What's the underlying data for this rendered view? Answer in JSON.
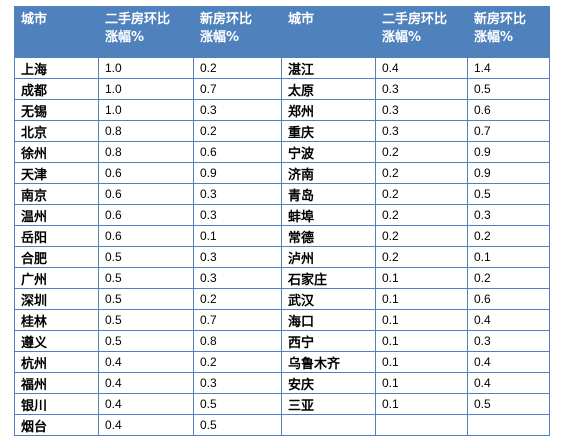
{
  "header": {
    "city": "城市",
    "secondhand_l1": "二手房环比",
    "secondhand_l2": "涨幅%",
    "new_l1": "新房环比",
    "new_l2": "涨幅%"
  },
  "rows": [
    {
      "left": {
        "city": "上海",
        "secondhand": "1.0",
        "new": "0.2"
      },
      "right": {
        "city": "湛江",
        "secondhand": "0.4",
        "new": "1.4"
      }
    },
    {
      "left": {
        "city": "成都",
        "secondhand": "1.0",
        "new": "0.7"
      },
      "right": {
        "city": "太原",
        "secondhand": "0.3",
        "new": "0.5"
      }
    },
    {
      "left": {
        "city": "无锡",
        "secondhand": "1.0",
        "new": "0.3"
      },
      "right": {
        "city": "郑州",
        "secondhand": "0.3",
        "new": "0.6"
      }
    },
    {
      "left": {
        "city": "北京",
        "secondhand": "0.8",
        "new": "0.2"
      },
      "right": {
        "city": "重庆",
        "secondhand": "0.3",
        "new": "0.7"
      }
    },
    {
      "left": {
        "city": "徐州",
        "secondhand": "0.8",
        "new": "0.6"
      },
      "right": {
        "city": "宁波",
        "secondhand": "0.2",
        "new": "0.9"
      }
    },
    {
      "left": {
        "city": "天津",
        "secondhand": "0.6",
        "new": "0.9"
      },
      "right": {
        "city": "济南",
        "secondhand": "0.2",
        "new": "0.9"
      }
    },
    {
      "left": {
        "city": "南京",
        "secondhand": "0.6",
        "new": "0.3"
      },
      "right": {
        "city": "青岛",
        "secondhand": "0.2",
        "new": "0.5"
      }
    },
    {
      "left": {
        "city": "温州",
        "secondhand": "0.6",
        "new": "0.3"
      },
      "right": {
        "city": "蚌埠",
        "secondhand": "0.2",
        "new": "0.3"
      }
    },
    {
      "left": {
        "city": "岳阳",
        "secondhand": "0.6",
        "new": "0.1"
      },
      "right": {
        "city": "常德",
        "secondhand": "0.2",
        "new": "0.2"
      }
    },
    {
      "left": {
        "city": "合肥",
        "secondhand": "0.5",
        "new": "0.3"
      },
      "right": {
        "city": "泸州",
        "secondhand": "0.2",
        "new": "0.1"
      }
    },
    {
      "left": {
        "city": "广州",
        "secondhand": "0.5",
        "new": "0.3"
      },
      "right": {
        "city": "石家庄",
        "secondhand": "0.1",
        "new": "0.2"
      }
    },
    {
      "left": {
        "city": "深圳",
        "secondhand": "0.5",
        "new": "0.2"
      },
      "right": {
        "city": "武汉",
        "secondhand": "0.1",
        "new": "0.6"
      }
    },
    {
      "left": {
        "city": "桂林",
        "secondhand": "0.5",
        "new": "0.7"
      },
      "right": {
        "city": "海口",
        "secondhand": "0.1",
        "new": "0.4"
      }
    },
    {
      "left": {
        "city": "遵义",
        "secondhand": "0.5",
        "new": "0.8"
      },
      "right": {
        "city": "西宁",
        "secondhand": "0.1",
        "new": "0.3"
      }
    },
    {
      "left": {
        "city": "杭州",
        "secondhand": "0.4",
        "new": "0.2"
      },
      "right": {
        "city": "乌鲁木齐",
        "secondhand": "0.1",
        "new": "0.4"
      }
    },
    {
      "left": {
        "city": "福州",
        "secondhand": "0.4",
        "new": "0.3"
      },
      "right": {
        "city": "安庆",
        "secondhand": "0.1",
        "new": "0.4"
      }
    },
    {
      "left": {
        "city": "银川",
        "secondhand": "0.4",
        "new": "0.5"
      },
      "right": {
        "city": "三亚",
        "secondhand": "0.1",
        "new": "0.5"
      }
    },
    {
      "left": {
        "city": "烟台",
        "secondhand": "0.4",
        "new": "0.5"
      },
      "right": {
        "city": "",
        "secondhand": "",
        "new": ""
      }
    }
  ]
}
